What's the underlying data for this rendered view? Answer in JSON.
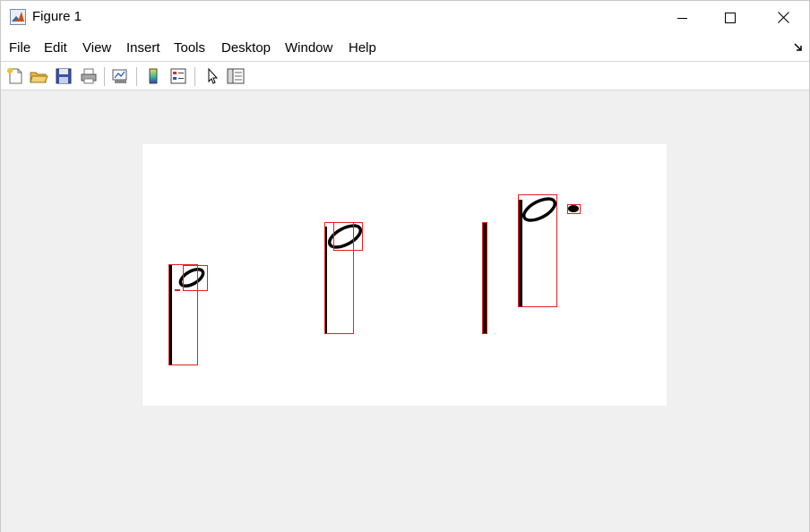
{
  "window": {
    "title": "Figure 1",
    "icons": [
      "matlab-icon",
      "minimize-icon",
      "maximize-icon",
      "close-icon"
    ]
  },
  "menubar": {
    "items": [
      "File",
      "Edit",
      "View",
      "Insert",
      "Tools",
      "Desktop",
      "Window",
      "Help"
    ],
    "dock_icon": "dock-arrow-icon"
  },
  "toolbar": {
    "buttons": [
      "new-figure-icon",
      "open-file-icon",
      "save-icon",
      "print-icon",
      "link-plot-icon",
      "insert-colorbar-icon",
      "insert-legend-icon",
      "edit-plot-icon",
      "property-inspector-icon"
    ]
  },
  "colors": {
    "bounding_box": "#e02020",
    "ink": "#000000"
  }
}
